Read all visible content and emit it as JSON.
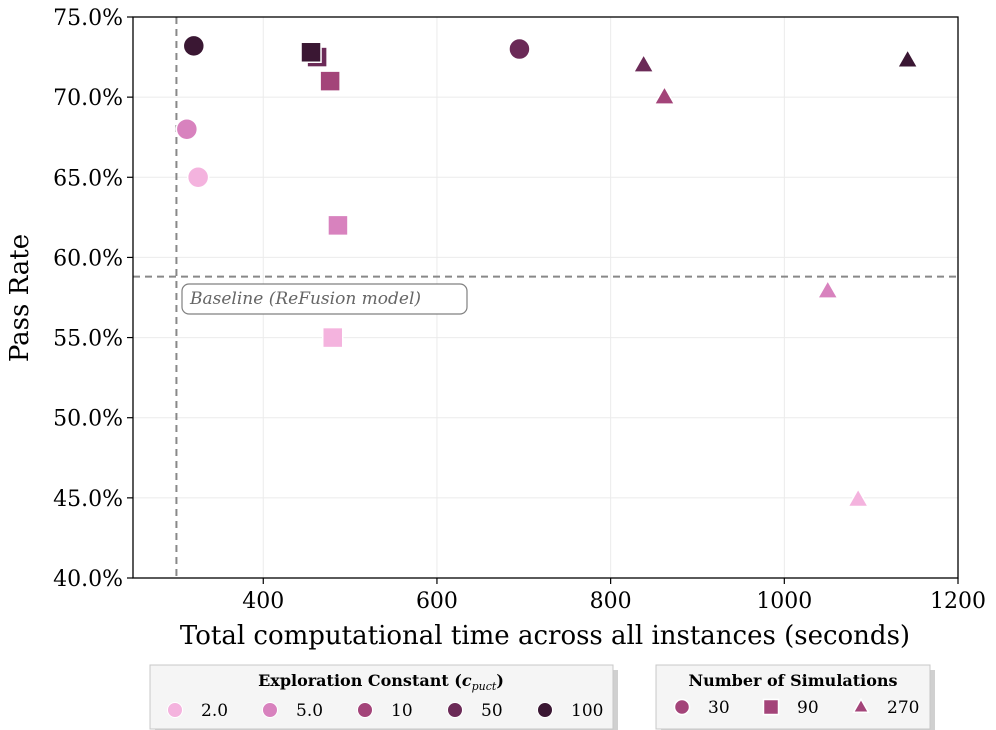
{
  "chart_data": {
    "type": "scatter",
    "title": "",
    "xlabel": "Total computational time across all instances (seconds)",
    "ylabel": "Pass Rate",
    "xlim": [
      250,
      1200
    ],
    "ylim": [
      0.4,
      0.75
    ],
    "xticks": [
      400,
      600,
      800,
      1000,
      1200
    ],
    "xtick_labels": [
      "400",
      "600",
      "800",
      "1000",
      "1200"
    ],
    "yticks": [
      0.4,
      0.45,
      0.5,
      0.55,
      0.6,
      0.65,
      0.7,
      0.75
    ],
    "ytick_labels": [
      "40.0%",
      "45.0%",
      "50.0%",
      "55.0%",
      "60.0%",
      "65.0%",
      "70.0%",
      "75.0%"
    ],
    "grid": true,
    "baseline": {
      "x": 300,
      "y": 0.588,
      "label": "Baseline (ReFusion model)"
    },
    "color_legend": {
      "title_prefix": "Exploration Constant (",
      "title_symbol": "c",
      "title_subscript": "puct",
      "title_suffix": ")",
      "entries": [
        {
          "label": "2.0",
          "color": "#f4b3de"
        },
        {
          "label": "5.0",
          "color": "#d882be"
        },
        {
          "label": "10",
          "color": "#a34479"
        },
        {
          "label": "50",
          "color": "#6b2a57"
        },
        {
          "label": "100",
          "color": "#3a1733"
        }
      ]
    },
    "shape_legend": {
      "title": "Number of Simulations",
      "color": "#a34479",
      "entries": [
        {
          "label": "30",
          "marker": "circle"
        },
        {
          "label": "90",
          "marker": "square"
        },
        {
          "label": "270",
          "marker": "triangle"
        }
      ]
    },
    "points": [
      {
        "c": "2.0",
        "sims": 30,
        "x": 325,
        "y": 0.65
      },
      {
        "c": "5.0",
        "sims": 30,
        "x": 312,
        "y": 0.68
      },
      {
        "c": "10",
        "sims": 30,
        "x": 695,
        "y": 0.73
      },
      {
        "c": "50",
        "sims": 30,
        "x": 695,
        "y": 0.73
      },
      {
        "c": "100",
        "sims": 30,
        "x": 320,
        "y": 0.732
      },
      {
        "c": "2.0",
        "sims": 90,
        "x": 480,
        "y": 0.55
      },
      {
        "c": "5.0",
        "sims": 90,
        "x": 486,
        "y": 0.62
      },
      {
        "c": "10",
        "sims": 90,
        "x": 477,
        "y": 0.71
      },
      {
        "c": "50",
        "sims": 90,
        "x": 462,
        "y": 0.725
      },
      {
        "c": "100",
        "sims": 90,
        "x": 455,
        "y": 0.728
      },
      {
        "c": "2.0",
        "sims": 270,
        "x": 1085,
        "y": 0.449
      },
      {
        "c": "5.0",
        "sims": 270,
        "x": 1050,
        "y": 0.579
      },
      {
        "c": "10",
        "sims": 270,
        "x": 862,
        "y": 0.7
      },
      {
        "c": "50",
        "sims": 270,
        "x": 838,
        "y": 0.72
      },
      {
        "c": "100",
        "sims": 270,
        "x": 1142,
        "y": 0.723
      }
    ]
  }
}
